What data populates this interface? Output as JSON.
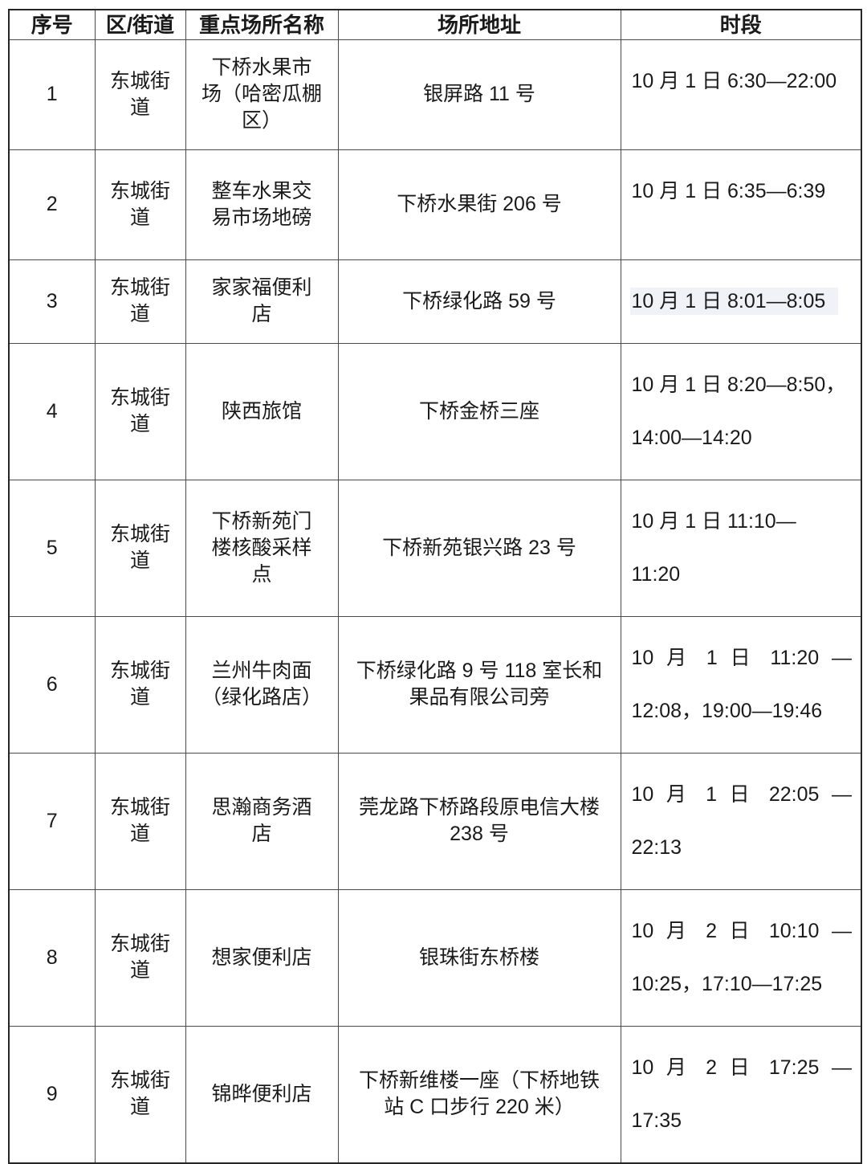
{
  "colors": {
    "page_background": "#ffffff",
    "text": "#1a1a1a",
    "border_outer": "#262626",
    "border_inner": "#4a4a4a",
    "time_highlight": "#f1f2f7"
  },
  "table": {
    "headers": [
      "序号",
      "区/街道",
      "重点场所名称",
      "场所地址",
      "时段"
    ],
    "rows": [
      {
        "no": "1",
        "district": "东城街\n道",
        "name": "下桥水果市\n场（哈密瓜棚\n区）",
        "address": "银屏路 11 号",
        "time_lines": [
          "10 月 1 日 6:30—22:00"
        ]
      },
      {
        "no": "2",
        "district": "东城街\n道",
        "name": "整车水果交\n易市场地磅",
        "address": "下桥水果街 206 号",
        "time_lines": [
          "10 月 1 日 6:35—6:39"
        ]
      },
      {
        "no": "3",
        "district": "东城街\n道",
        "name": "家家福便利\n店",
        "address": "下桥绿化路 59 号",
        "time_lines": [
          "10 月 1 日 8:01—8:05"
        ],
        "time_highlighted": true
      },
      {
        "no": "4",
        "district": "东城街\n道",
        "name": "陕西旅馆",
        "address": "下桥金桥三座",
        "time_lines": [
          "10 月 1 日 8:20—8:50，",
          "14:00—14:20"
        ]
      },
      {
        "no": "5",
        "district": "东城街\n道",
        "name": "下桥新苑门\n楼核酸采样\n点",
        "address": "下桥新苑银兴路 23 号",
        "time_lines": [
          "10 月 1 日 11:10—",
          "11:20"
        ]
      },
      {
        "no": "6",
        "district": "东城街\n道",
        "name": "兰州牛肉面\n（绿化路店）",
        "address": "下桥绿化路 9 号 118 室长和\n果品有限公司旁",
        "time_lines": [
          "10 月 1 日 11:20 —",
          "12:08，19:00—19:46"
        ]
      },
      {
        "no": "7",
        "district": "东城街\n道",
        "name": "思瀚商务酒\n店",
        "address": "莞龙路下桥路段原电信大楼\n238 号",
        "time_lines": [
          "10 月 1 日 22:05 —",
          "22:13"
        ]
      },
      {
        "no": "8",
        "district": "东城街\n道",
        "name": "想家便利店",
        "address": "银珠街东桥楼",
        "time_lines": [
          "10 月 2 日 10:10 —",
          "10:25，17:10—17:25"
        ]
      },
      {
        "no": "9",
        "district": "东城街\n道",
        "name": "锦晔便利店",
        "address": "下桥新维楼一座（下桥地铁\n站 C 口步行 220 米）",
        "time_lines": [
          "10 月 2 日 17:25 —",
          "17:35"
        ]
      }
    ]
  }
}
